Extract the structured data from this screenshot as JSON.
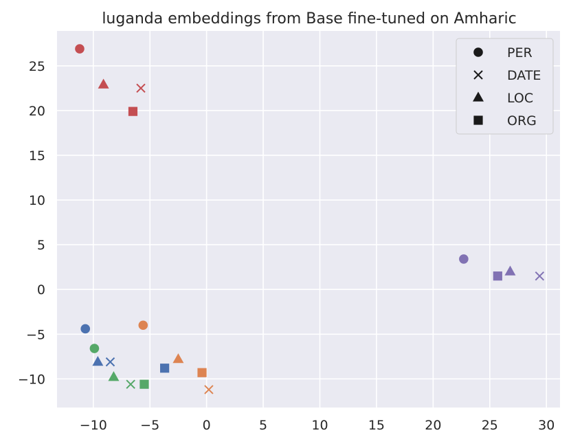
{
  "chart_data": {
    "type": "scatter",
    "title": "luganda embeddings from Base fine-tuned on Amharic",
    "xlabel": "",
    "ylabel": "",
    "xlim": [
      -13.2,
      31.2
    ],
    "ylim": [
      -13.2,
      28.9
    ],
    "xticks": [
      -10,
      -5,
      0,
      5,
      10,
      15,
      20,
      25,
      30
    ],
    "yticks": [
      -10,
      -5,
      0,
      5,
      10,
      15,
      20,
      25
    ],
    "xtick_labels": [
      "−10",
      "−5",
      "0",
      "5",
      "10",
      "15",
      "20",
      "25",
      "30"
    ],
    "ytick_labels": [
      "−10",
      "−5",
      "0",
      "5",
      "10",
      "15",
      "20",
      "25"
    ],
    "grid": true,
    "background": "#eaeaf2",
    "legend": {
      "placement": "top-right",
      "entries": [
        {
          "label": "PER",
          "marker": "circle"
        },
        {
          "label": "DATE",
          "marker": "x"
        },
        {
          "label": "LOC",
          "marker": "triangle"
        },
        {
          "label": "ORG",
          "marker": "square"
        }
      ]
    },
    "series": [
      {
        "color": "#c44e52",
        "points": [
          {
            "label": "PER",
            "marker": "circle",
            "x": -11.2,
            "y": 26.9
          },
          {
            "label": "DATE",
            "marker": "x",
            "x": -5.8,
            "y": 22.5
          },
          {
            "label": "LOC",
            "marker": "triangle",
            "x": -9.1,
            "y": 22.9
          },
          {
            "label": "ORG",
            "marker": "square",
            "x": -6.5,
            "y": 19.9
          }
        ]
      },
      {
        "color": "#4c72b0",
        "points": [
          {
            "label": "PER",
            "marker": "circle",
            "x": -10.7,
            "y": -4.4
          },
          {
            "label": "DATE",
            "marker": "x",
            "x": -8.5,
            "y": -8.1
          },
          {
            "label": "LOC",
            "marker": "triangle",
            "x": -9.6,
            "y": -8.1
          },
          {
            "label": "ORG",
            "marker": "square",
            "x": -3.7,
            "y": -8.8
          }
        ]
      },
      {
        "color": "#dd8452",
        "points": [
          {
            "label": "PER",
            "marker": "circle",
            "x": -5.6,
            "y": -4.0
          },
          {
            "label": "DATE",
            "marker": "x",
            "x": 0.2,
            "y": -11.2
          },
          {
            "label": "LOC",
            "marker": "triangle",
            "x": -2.5,
            "y": -7.8
          },
          {
            "label": "ORG",
            "marker": "square",
            "x": -0.4,
            "y": -9.3
          }
        ]
      },
      {
        "color": "#55a868",
        "points": [
          {
            "label": "PER",
            "marker": "circle",
            "x": -9.9,
            "y": -6.6
          },
          {
            "label": "DATE",
            "marker": "x",
            "x": -6.7,
            "y": -10.6
          },
          {
            "label": "LOC",
            "marker": "triangle",
            "x": -8.2,
            "y": -9.8
          },
          {
            "label": "ORG",
            "marker": "square",
            "x": -5.5,
            "y": -10.6
          }
        ]
      },
      {
        "color": "#8172b3",
        "points": [
          {
            "label": "PER",
            "marker": "circle",
            "x": 22.7,
            "y": 3.4
          },
          {
            "label": "DATE",
            "marker": "x",
            "x": 29.4,
            "y": 1.5
          },
          {
            "label": "LOC",
            "marker": "triangle",
            "x": 26.8,
            "y": 2.0
          },
          {
            "label": "ORG",
            "marker": "square",
            "x": 25.7,
            "y": 1.5
          }
        ]
      }
    ]
  }
}
